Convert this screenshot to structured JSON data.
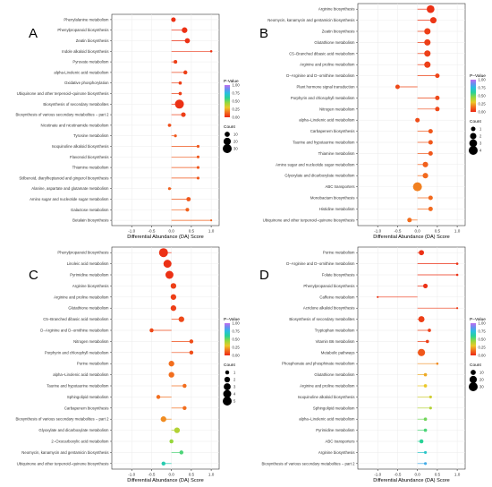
{
  "chart_data": [
    {
      "panel": "A",
      "type": "scatter",
      "xlabel": "Differential Abundance (DA) Score",
      "xlim": [
        -1.5,
        1.2
      ],
      "xticks": [
        "-1.0",
        "-0.5",
        "0.0",
        "0.5",
        "1.0"
      ],
      "xtick_values": [
        -1.0,
        -0.5,
        0.0,
        0.5,
        1.0
      ],
      "legend_pvalue_title": "P-Value",
      "legend_pvalue_ticks": [
        "1.00",
        "0.75",
        "0.50",
        "0.25",
        "0.00"
      ],
      "legend_count_title": "Count",
      "legend_count_labels": [
        "10",
        "20",
        "30"
      ],
      "legend_count_values": [
        10,
        20,
        30
      ],
      "count_max": 30,
      "categories": [
        "Phenylalanine metabolism",
        "Phenylpropanoid biosynthesis",
        "Zeatin biosynthesis",
        "Indole alkaloid biosynthesis",
        "Pyruvate metabolism",
        "alpha-Linolenic acid metabolism",
        "Oxidative phosphorylation",
        "Ubiquinone and other terpenoid−quinone biosynthesis",
        "Biosynthesis of secondary metabolites",
        "Biosynthesis of various secondary metabolites − part 2",
        "Nicotinate and nicotinamide metabolism",
        "Tyrosine metabolism",
        "Isoquinoline alkaloid biosynthesis",
        "Flavonoid biosynthesis",
        "Thiamine metabolism",
        "Stilbenoid, diarylheptanoid and gingerol biosynthesis",
        "Alanine, aspartate and glutamate metabolism",
        "Amino sugar and nucleotide sugar metabolism",
        "Galactose metabolism",
        "Betalain biosynthesis"
      ],
      "values": [
        0.05,
        0.33,
        0.4,
        1.0,
        0.1,
        0.35,
        0.22,
        0.22,
        0.2,
        0.3,
        -0.05,
        0.1,
        0.67,
        0.67,
        0.67,
        0.67,
        -0.05,
        0.43,
        0.4,
        1.0
      ],
      "counts": [
        8,
        12,
        10,
        2,
        5,
        6,
        4,
        4,
        30,
        8,
        4,
        3,
        3,
        3,
        3,
        3,
        3,
        7,
        5,
        1
      ],
      "p_values": [
        0.02,
        0.02,
        0.02,
        0.03,
        0.05,
        0.05,
        0.05,
        0.05,
        0.02,
        0.05,
        0.08,
        0.1,
        0.1,
        0.1,
        0.1,
        0.1,
        0.12,
        0.1,
        0.12,
        0.12
      ]
    },
    {
      "panel": "B",
      "type": "scatter",
      "xlabel": "Differential Abundance (DA) Score",
      "xlim": [
        -1.5,
        1.2
      ],
      "xticks": [
        "-1.0",
        "-0.5",
        "0.0",
        "0.5",
        "1.0"
      ],
      "xtick_values": [
        -1.0,
        -0.5,
        0.0,
        0.5,
        1.0
      ],
      "legend_pvalue_title": "P−Value",
      "legend_pvalue_ticks": [
        "1.00",
        "0.75",
        "0.50",
        "0.25",
        "0.00"
      ],
      "legend_count_title": "Count",
      "legend_count_labels": [
        "1",
        "2",
        "3",
        "4"
      ],
      "legend_count_values": [
        1,
        2,
        3,
        4
      ],
      "count_max": 4,
      "categories": [
        "Arginine biosynthesis",
        "Neomycin, kanamycin and gentamicin biosynthesis",
        "Zeatin biosynthesis",
        "Glutathione metabolism",
        "C5−Branched dibasic acid metabolism",
        "Arginine and proline metabolism",
        "D−Arginine and D−ornithine metabolism",
        "Plant hormone signal transduction",
        "Porphyrin and chlorophyll metabolism",
        "Nitrogen metabolism",
        "alpha−Linolenic acid metabolism",
        "Carbapenem biosynthesis",
        "Taurine and hypotaurine metabolism",
        "Thiamine metabolism",
        "Amino sugar and nucleotide sugar metabolism",
        "Glyoxylate and dicarboxylate metabolism",
        "ABC transporters",
        "Monobactam biosynthesis",
        "Histidine metabolism",
        "Ubiquinone and other terpenoid−quinone biosynthesis"
      ],
      "values": [
        0.33,
        0.4,
        0.25,
        0.25,
        0.25,
        0.25,
        0.5,
        -0.5,
        0.5,
        0.5,
        0.0,
        0.33,
        0.33,
        0.33,
        0.2,
        0.2,
        0.0,
        0.33,
        0.33,
        -0.2
      ],
      "counts": [
        3,
        2,
        2,
        2,
        2,
        2,
        1,
        1,
        1,
        1,
        1,
        1,
        1,
        1,
        1.5,
        1.5,
        4,
        1,
        1,
        1
      ],
      "p_values": [
        0.02,
        0.03,
        0.05,
        0.05,
        0.05,
        0.05,
        0.06,
        0.07,
        0.07,
        0.07,
        0.08,
        0.1,
        0.1,
        0.1,
        0.12,
        0.14,
        0.18,
        0.14,
        0.14,
        0.15
      ]
    },
    {
      "panel": "C",
      "type": "scatter",
      "xlabel": "Differential Abundance (DA) Score",
      "xlim": [
        -1.5,
        1.2
      ],
      "xticks": [
        "-1.0",
        "-0.5",
        "0.0",
        "0.5",
        "1.0"
      ],
      "xtick_values": [
        -1.0,
        -0.5,
        0.0,
        0.5,
        1.0
      ],
      "legend_pvalue_title": "P−Value",
      "legend_pvalue_ticks": [
        "1.00",
        "0.75",
        "0.50",
        "0.25",
        "0.00"
      ],
      "legend_count_title": "Count",
      "legend_count_labels": [
        "1",
        "2",
        "3",
        "4",
        "5"
      ],
      "legend_count_values": [
        1,
        2,
        3,
        4,
        5
      ],
      "count_max": 5,
      "categories": [
        "Phenylpropanoid biosynthesis",
        "Linoleic acid metabolism",
        "Pyrimidine metabolism",
        "Arginine biosynthesis",
        "Arginine and proline metabolism",
        "Glutathione metabolism",
        "C5−Branched dibasic acid metabolism",
        "D−Arginine and D−ornithine metabolism",
        "Nitrogen metabolism",
        "Porphyrin and chlorophyll metabolism",
        "Purine metabolism",
        "alpha−Linolenic acid metabolism",
        "Taurine and hypotaurine metabolism",
        "Sphingolipid metabolism",
        "Carbapenem biosynthesis",
        "Biosynthesis of various secondary metabolites − part 2",
        "Glyoxylate and dicarboxylate metabolism",
        "2−Oxocarboxylic acid metabolism",
        "Neomycin, kanamycin and gentamicin biosynthesis",
        "Ubiquinone and other terpenoid−quinone biosynthesis"
      ],
      "values": [
        -0.2,
        -0.1,
        -0.05,
        0.05,
        0.05,
        0.05,
        0.25,
        -0.5,
        0.5,
        0.5,
        0.0,
        0.0,
        0.33,
        -0.33,
        0.33,
        -0.2,
        0.14,
        0.0,
        0.25,
        -0.2
      ],
      "counts": [
        5,
        4,
        4,
        2,
        2,
        2,
        2,
        1,
        1,
        1,
        2,
        2,
        1,
        1,
        1,
        2,
        2,
        1,
        1,
        1
      ],
      "p_values": [
        0.02,
        0.02,
        0.02,
        0.05,
        0.05,
        0.05,
        0.07,
        0.07,
        0.08,
        0.08,
        0.15,
        0.15,
        0.15,
        0.15,
        0.15,
        0.2,
        0.4,
        0.45,
        0.55,
        0.65
      ]
    },
    {
      "panel": "D",
      "type": "scatter",
      "xlabel": "Differential Abundance (DA) Score",
      "xlim": [
        -1.5,
        1.2
      ],
      "xticks": [
        "-1.0",
        "-0.5",
        "0.0",
        "0.5",
        "1.0"
      ],
      "xtick_values": [
        -1.0,
        -0.5,
        0.0,
        0.5,
        1.0
      ],
      "legend_pvalue_title": "P−Value",
      "legend_pvalue_ticks": [
        "1.00",
        "0.75",
        "0.50",
        "0.25",
        "0.00"
      ],
      "legend_count_title": "Count",
      "legend_count_labels": [
        "10",
        "20",
        "30"
      ],
      "legend_count_values": [
        10,
        20,
        30
      ],
      "count_max": 30,
      "categories": [
        "Purine metabolism",
        "D−Arginine and D−ornithine metabolism",
        "Folate biosynthesis",
        "Phenylpropanoid biosynthesis",
        "Caffeine metabolism",
        "Acridone alkaloid biosynthesis",
        "Biosynthesis of secondary metabolites",
        "Tryptophan metabolism",
        "Vitamin B6 metabolism",
        "Metabolic pathways",
        "Phosphonate and phosphinate metabolism",
        "Glutathione metabolism",
        "Arginine and proline metabolism",
        "Isoquinoline alkaloid biosynthesis",
        "Sphingolipid metabolism",
        "alpha−Linolenic acid metabolism",
        "Pyrimidine metabolism",
        "ABC transporters",
        "Arginine biosynthesis",
        "Biosynthesis of various secondary metabolites − part 2"
      ],
      "values": [
        0.1,
        1.0,
        1.0,
        0.2,
        -1.0,
        1.0,
        0.1,
        0.3,
        0.25,
        0.1,
        0.5,
        0.2,
        0.2,
        0.33,
        0.33,
        0.2,
        0.2,
        0.1,
        0.2,
        0.2
      ],
      "counts": [
        10,
        2,
        2,
        8,
        1,
        1,
        14,
        4,
        4,
        20,
        2,
        4,
        4,
        3,
        3,
        4,
        4,
        6,
        3,
        3
      ],
      "p_values": [
        0.02,
        0.02,
        0.02,
        0.02,
        0.03,
        0.04,
        0.05,
        0.05,
        0.05,
        0.1,
        0.2,
        0.25,
        0.3,
        0.35,
        0.4,
        0.5,
        0.55,
        0.6,
        0.7,
        0.8
      ]
    }
  ]
}
